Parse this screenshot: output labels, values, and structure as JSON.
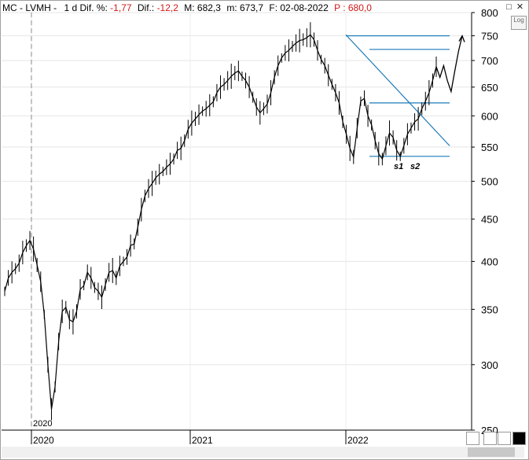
{
  "header": {
    "symbol": "MC - LVMH -",
    "interval": "1 d",
    "dif_pct_label": "Dif. %:",
    "dif_pct": "-1,77",
    "dif_label": "Dif.:",
    "dif": "-12,2",
    "max": "M: 682,3",
    "min": "m: 673,7",
    "date": "F: 02-08-2022",
    "price": "P : 680,0"
  },
  "controls": {
    "log_label": "Log",
    "maximize": "□",
    "close": "✕"
  },
  "annotations": {
    "s1": "s1",
    "s2": "s2",
    "cursor_year": "2020"
  },
  "colors": {
    "price": "#000000",
    "trend": "#1a7ab8",
    "red": "#d01818"
  },
  "chart_data": {
    "type": "line",
    "y_scale": "log",
    "ylim": [
      250,
      800
    ],
    "yticks": [
      250,
      300,
      350,
      400,
      450,
      500,
      550,
      600,
      650,
      700,
      750,
      800
    ],
    "ytick_labels": [
      "250",
      "300",
      "350",
      "400",
      "450",
      "500",
      "550",
      "600",
      "650",
      "700",
      "750",
      "800"
    ],
    "xticks": [
      "2020",
      "2021",
      "2022"
    ],
    "series": [
      {
        "values": [
          368,
          382,
          388,
          392,
          398,
          410,
          418,
          424,
          414,
          396,
          378,
          345,
          300,
          265,
          282,
          320,
          348,
          352,
          340,
          338,
          348,
          370,
          374,
          388,
          382,
          372,
          368,
          362,
          375,
          388,
          390,
          382,
          395,
          400,
          405,
          418,
          420,
          440,
          462,
          480,
          490,
          497,
          505,
          510,
          514,
          520,
          525,
          532,
          545,
          548,
          560,
          578,
          588,
          595,
          602,
          608,
          612,
          618,
          624,
          640,
          650,
          655,
          662,
          670,
          676,
          680,
          670,
          662,
          650,
          632,
          615,
          605,
          612,
          620,
          640,
          668,
          690,
          705,
          715,
          720,
          728,
          735,
          740,
          742,
          746,
          752,
          742,
          720,
          702,
          690,
          672,
          655,
          640,
          622,
          590,
          570,
          548,
          535,
          580,
          625,
          630,
          600,
          585,
          560,
          540,
          532,
          552,
          572,
          565,
          545,
          536,
          552,
          570,
          580,
          590,
          595,
          612,
          625,
          640,
          662,
          688
        ],
        "forecast": [
          688,
          668,
          690,
          662,
          642,
          680,
          718,
          750
        ]
      }
    ],
    "resistance_lines": [
      750,
      722,
      622,
      536
    ],
    "downtrend_line": {
      "from": 752,
      "to": 552
    }
  }
}
